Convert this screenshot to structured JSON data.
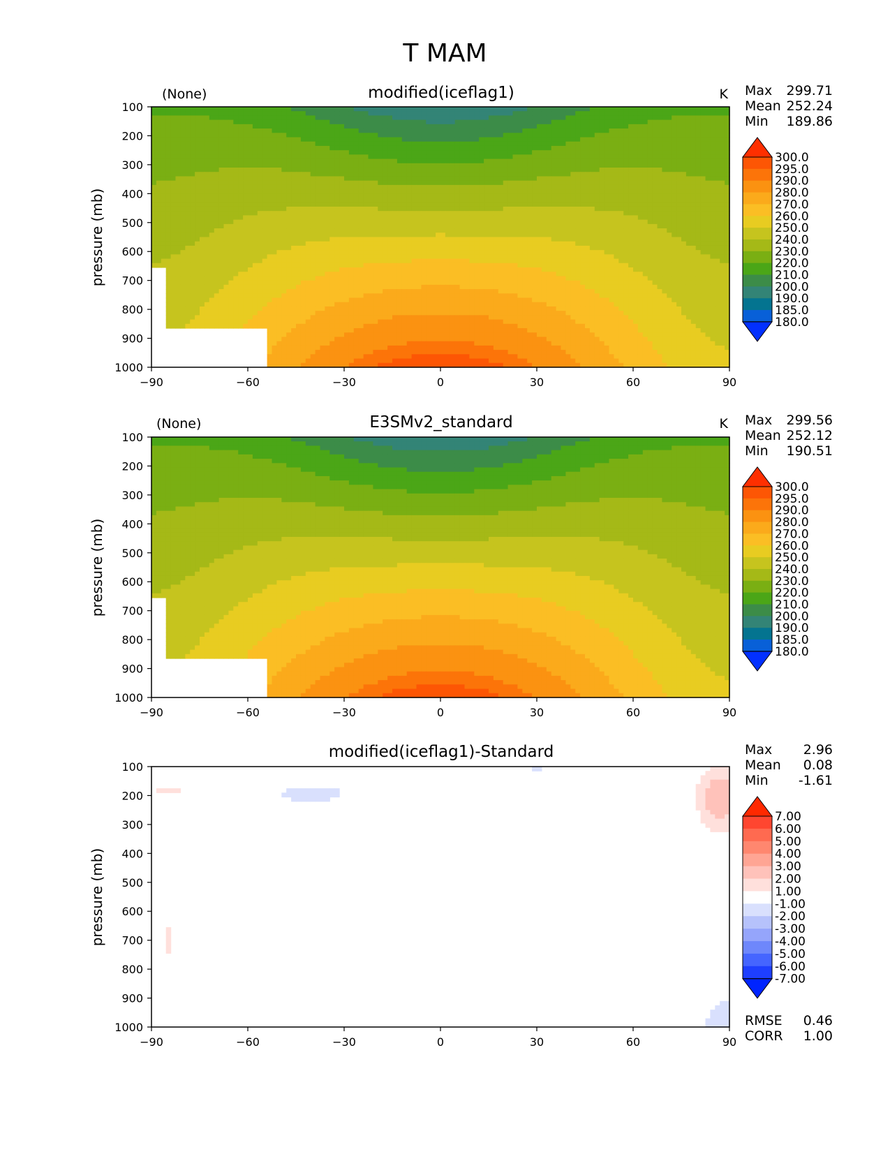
{
  "figure": {
    "title": "T MAM"
  },
  "colors": {
    "temperature_levels": [
      180,
      185,
      190,
      200,
      210,
      220,
      230,
      240,
      250,
      260,
      270,
      280,
      290,
      295,
      300
    ],
    "temperature_fills": [
      "#0230ff",
      "#0860d8",
      "#047490",
      "#338476",
      "#3c8c48",
      "#4ba617",
      "#7aaf13",
      "#a5b917",
      "#c6c41e",
      "#e8cc21",
      "#fbbe24",
      "#fbaa1b",
      "#fb9211",
      "#fc7409",
      "#fd5604",
      "#fe2f00"
    ],
    "difference_levels": [
      -7,
      -6,
      -5,
      -4,
      -3,
      -2,
      -1,
      1,
      2,
      3,
      4,
      5,
      6,
      7
    ],
    "difference_fills": [
      "#0024ff",
      "#1e3fff",
      "#4565ff",
      "#6e87fb",
      "#95a5fb",
      "#b6c2fb",
      "#d9e0fd",
      "#ffffff",
      "#ffe0dc",
      "#ffc2ba",
      "#ffa594",
      "#ff876f",
      "#ff6a50",
      "#ff4630",
      "#ff2900"
    ]
  },
  "chart_data": [
    {
      "type": "heatmap",
      "title": "modified(iceflag1)",
      "left_label": "(None)",
      "units": "K",
      "ylabel": "pressure (mb)",
      "xlabel": "",
      "x_ticks": [
        -90,
        -60,
        -30,
        0,
        30,
        60,
        90
      ],
      "y_ticks": [
        100,
        200,
        300,
        400,
        500,
        600,
        700,
        800,
        900,
        1000
      ],
      "xlim": [
        -90,
        90
      ],
      "ylim": [
        1000,
        100
      ],
      "stats": {
        "Max": "299.71",
        "Mean": "252.24",
        "Min": "189.86"
      },
      "colorbar_labels": [
        "300.0",
        "295.0",
        "290.0",
        "280.0",
        "270.0",
        "260.0",
        "250.0",
        "240.0",
        "230.0",
        "220.0",
        "210.0",
        "200.0",
        "190.0",
        "185.0",
        "180.0"
      ],
      "field": {
        "variable": "temperature",
        "equator_surface": 299.71,
        "polar_surface": 252,
        "stratosphere_tropics": 190,
        "stratosphere_poles": 218
      }
    },
    {
      "type": "heatmap",
      "title": "E3SMv2_standard",
      "left_label": "(None)",
      "units": "K",
      "ylabel": "pressure (mb)",
      "xlabel": "",
      "x_ticks": [
        -90,
        -60,
        -30,
        0,
        30,
        60,
        90
      ],
      "y_ticks": [
        100,
        200,
        300,
        400,
        500,
        600,
        700,
        800,
        900,
        1000
      ],
      "xlim": [
        -90,
        90
      ],
      "ylim": [
        1000,
        100
      ],
      "stats": {
        "Max": "299.56",
        "Mean": "252.12",
        "Min": "190.51"
      },
      "colorbar_labels": [
        "300.0",
        "295.0",
        "290.0",
        "280.0",
        "270.0",
        "260.0",
        "250.0",
        "240.0",
        "230.0",
        "220.0",
        "210.0",
        "200.0",
        "190.0",
        "185.0",
        "180.0"
      ],
      "field": {
        "variable": "temperature",
        "equator_surface": 299.56,
        "polar_surface": 252,
        "stratosphere_tropics": 190.5,
        "stratosphere_poles": 218
      }
    },
    {
      "type": "heatmap",
      "title": "modified(iceflag1)-Standard",
      "left_label": "",
      "units": "",
      "ylabel": "pressure (mb)",
      "xlabel": "",
      "x_ticks": [
        -90,
        -60,
        -30,
        0,
        30,
        60,
        90
      ],
      "y_ticks": [
        100,
        200,
        300,
        400,
        500,
        600,
        700,
        800,
        900,
        1000
      ],
      "xlim": [
        -90,
        90
      ],
      "ylim": [
        1000,
        100
      ],
      "stats": {
        "Max": "2.96",
        "Mean": "0.08",
        "Min": "-1.61"
      },
      "extra_stats": {
        "RMSE": "0.46",
        "CORR": "1.00"
      },
      "colorbar_labels": [
        "7.00",
        "6.00",
        "5.00",
        "4.00",
        "3.00",
        "2.00",
        "1.00",
        "-1.00",
        "-2.00",
        "-3.00",
        "-4.00",
        "-5.00",
        "-6.00",
        "-7.00"
      ],
      "anomalies": [
        {
          "lat": 87,
          "p": 210,
          "dlat": 7,
          "dp": 110,
          "value": 2.96
        },
        {
          "lat": -85,
          "p": 180,
          "dlat": 8,
          "dp": 20,
          "value": 1.3
        },
        {
          "lat": -40,
          "p": 195,
          "dlat": 16,
          "dp": 40,
          "value": -1.4
        },
        {
          "lat": 30,
          "p": 100,
          "dlat": 12,
          "dp": 18,
          "value": -1.2
        },
        {
          "lat": 88,
          "p": 990,
          "dlat": 7,
          "dp": 110,
          "value": -1.61
        },
        {
          "lat": -85,
          "p": 700,
          "dlat": 1.2,
          "dp": 110,
          "value": 1.2
        }
      ]
    }
  ]
}
